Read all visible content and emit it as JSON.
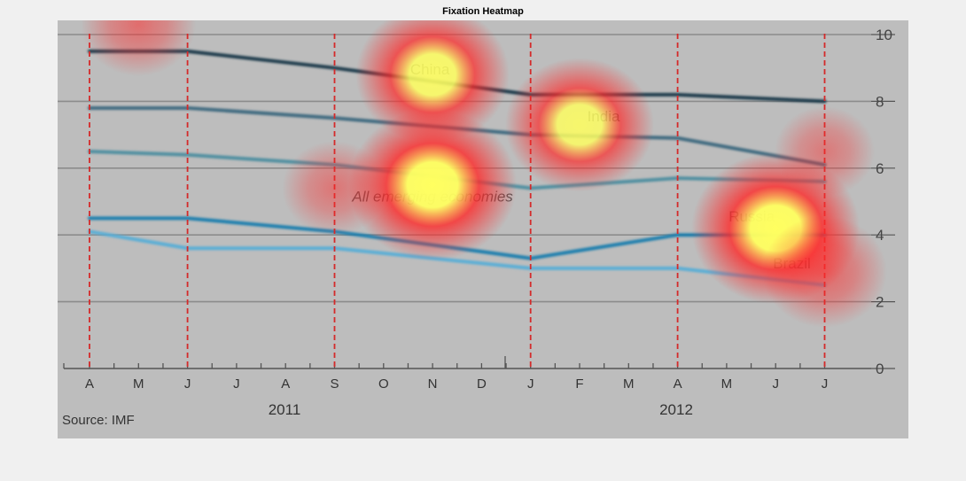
{
  "figure_title": "Fixation Heatmap",
  "colors": {
    "page_background": "#f0f0f0",
    "plot_background": "#bdbdbd",
    "gridline": "#8c8c8c",
    "month_marker": "#d42a2a",
    "China": "#1d3a4c",
    "India": "#3f6b80",
    "All emerging economies": "#4f8fa0",
    "Russia": "#1e7fae",
    "Brazil": "#5aaed6",
    "heat_low": "#ff2a2a",
    "heat_high": "#ffff60"
  },
  "chart_data": {
    "type": "line",
    "title": "Fixation Heatmap",
    "source": "Source: IMF",
    "ylim": [
      0,
      10
    ],
    "y_ticks": [
      "0",
      "2",
      "4",
      "6",
      "8",
      "10"
    ],
    "x_tick_labels": [
      "A",
      "M",
      "J",
      "J",
      "A",
      "S",
      "O",
      "N",
      "D",
      "J",
      "F",
      "M",
      "A",
      "M",
      "J",
      "J"
    ],
    "year_labels": [
      "2011",
      "2012"
    ],
    "grid": true,
    "marked_months": [
      "Apr 2011",
      "Jun 2011",
      "Sep 2011",
      "Jan 2012",
      "Apr 2012",
      "Jul 2012"
    ],
    "series": [
      {
        "name": "China",
        "x": [
          "Apr 2011",
          "Jun 2011",
          "Sep 2011",
          "Jan 2012",
          "Apr 2012",
          "Jul 2012"
        ],
        "values": [
          9.5,
          9.5,
          9.0,
          8.2,
          8.2,
          8.0
        ]
      },
      {
        "name": "India",
        "x": [
          "Apr 2011",
          "Jun 2011",
          "Sep 2011",
          "Jan 2012",
          "Apr 2012",
          "Jul 2012"
        ],
        "values": [
          7.8,
          7.8,
          7.5,
          7.0,
          6.9,
          6.1
        ]
      },
      {
        "name": "All emerging economies",
        "x": [
          "Apr 2011",
          "Jun 2011",
          "Sep 2011",
          "Jan 2012",
          "Apr 2012",
          "Jul 2012"
        ],
        "values": [
          6.5,
          6.4,
          6.1,
          5.4,
          5.7,
          5.6
        ]
      },
      {
        "name": "Russia",
        "x": [
          "Apr 2011",
          "Jun 2011",
          "Sep 2011",
          "Jan 2012",
          "Apr 2012",
          "Jul 2012"
        ],
        "values": [
          4.5,
          4.5,
          4.1,
          3.3,
          4.0,
          4.0
        ]
      },
      {
        "name": "Brazil",
        "x": [
          "Apr 2011",
          "Jun 2011",
          "Sep 2011",
          "Jan 2012",
          "Apr 2012",
          "Jul 2012"
        ],
        "values": [
          4.1,
          3.6,
          3.6,
          3.0,
          3.0,
          2.5
        ]
      }
    ],
    "heat_spots": [
      {
        "month": "May 2011",
        "value": 10.3,
        "intensity": 0.45
      },
      {
        "month": "Nov 2011",
        "value": 8.8,
        "intensity": 0.85
      },
      {
        "month": "Nov 2011",
        "value": 5.5,
        "intensity": 1.0
      },
      {
        "month": "Feb 2012",
        "value": 7.3,
        "intensity": 0.8
      },
      {
        "month": "Jun 2012",
        "value": 4.2,
        "intensity": 1.0
      },
      {
        "month": "Jul 2012",
        "value": 2.9,
        "intensity": 0.55
      },
      {
        "month": "Sep 2011",
        "value": 5.4,
        "intensity": 0.35
      },
      {
        "month": "Jul 2012",
        "value": 6.5,
        "intensity": 0.3
      }
    ]
  }
}
